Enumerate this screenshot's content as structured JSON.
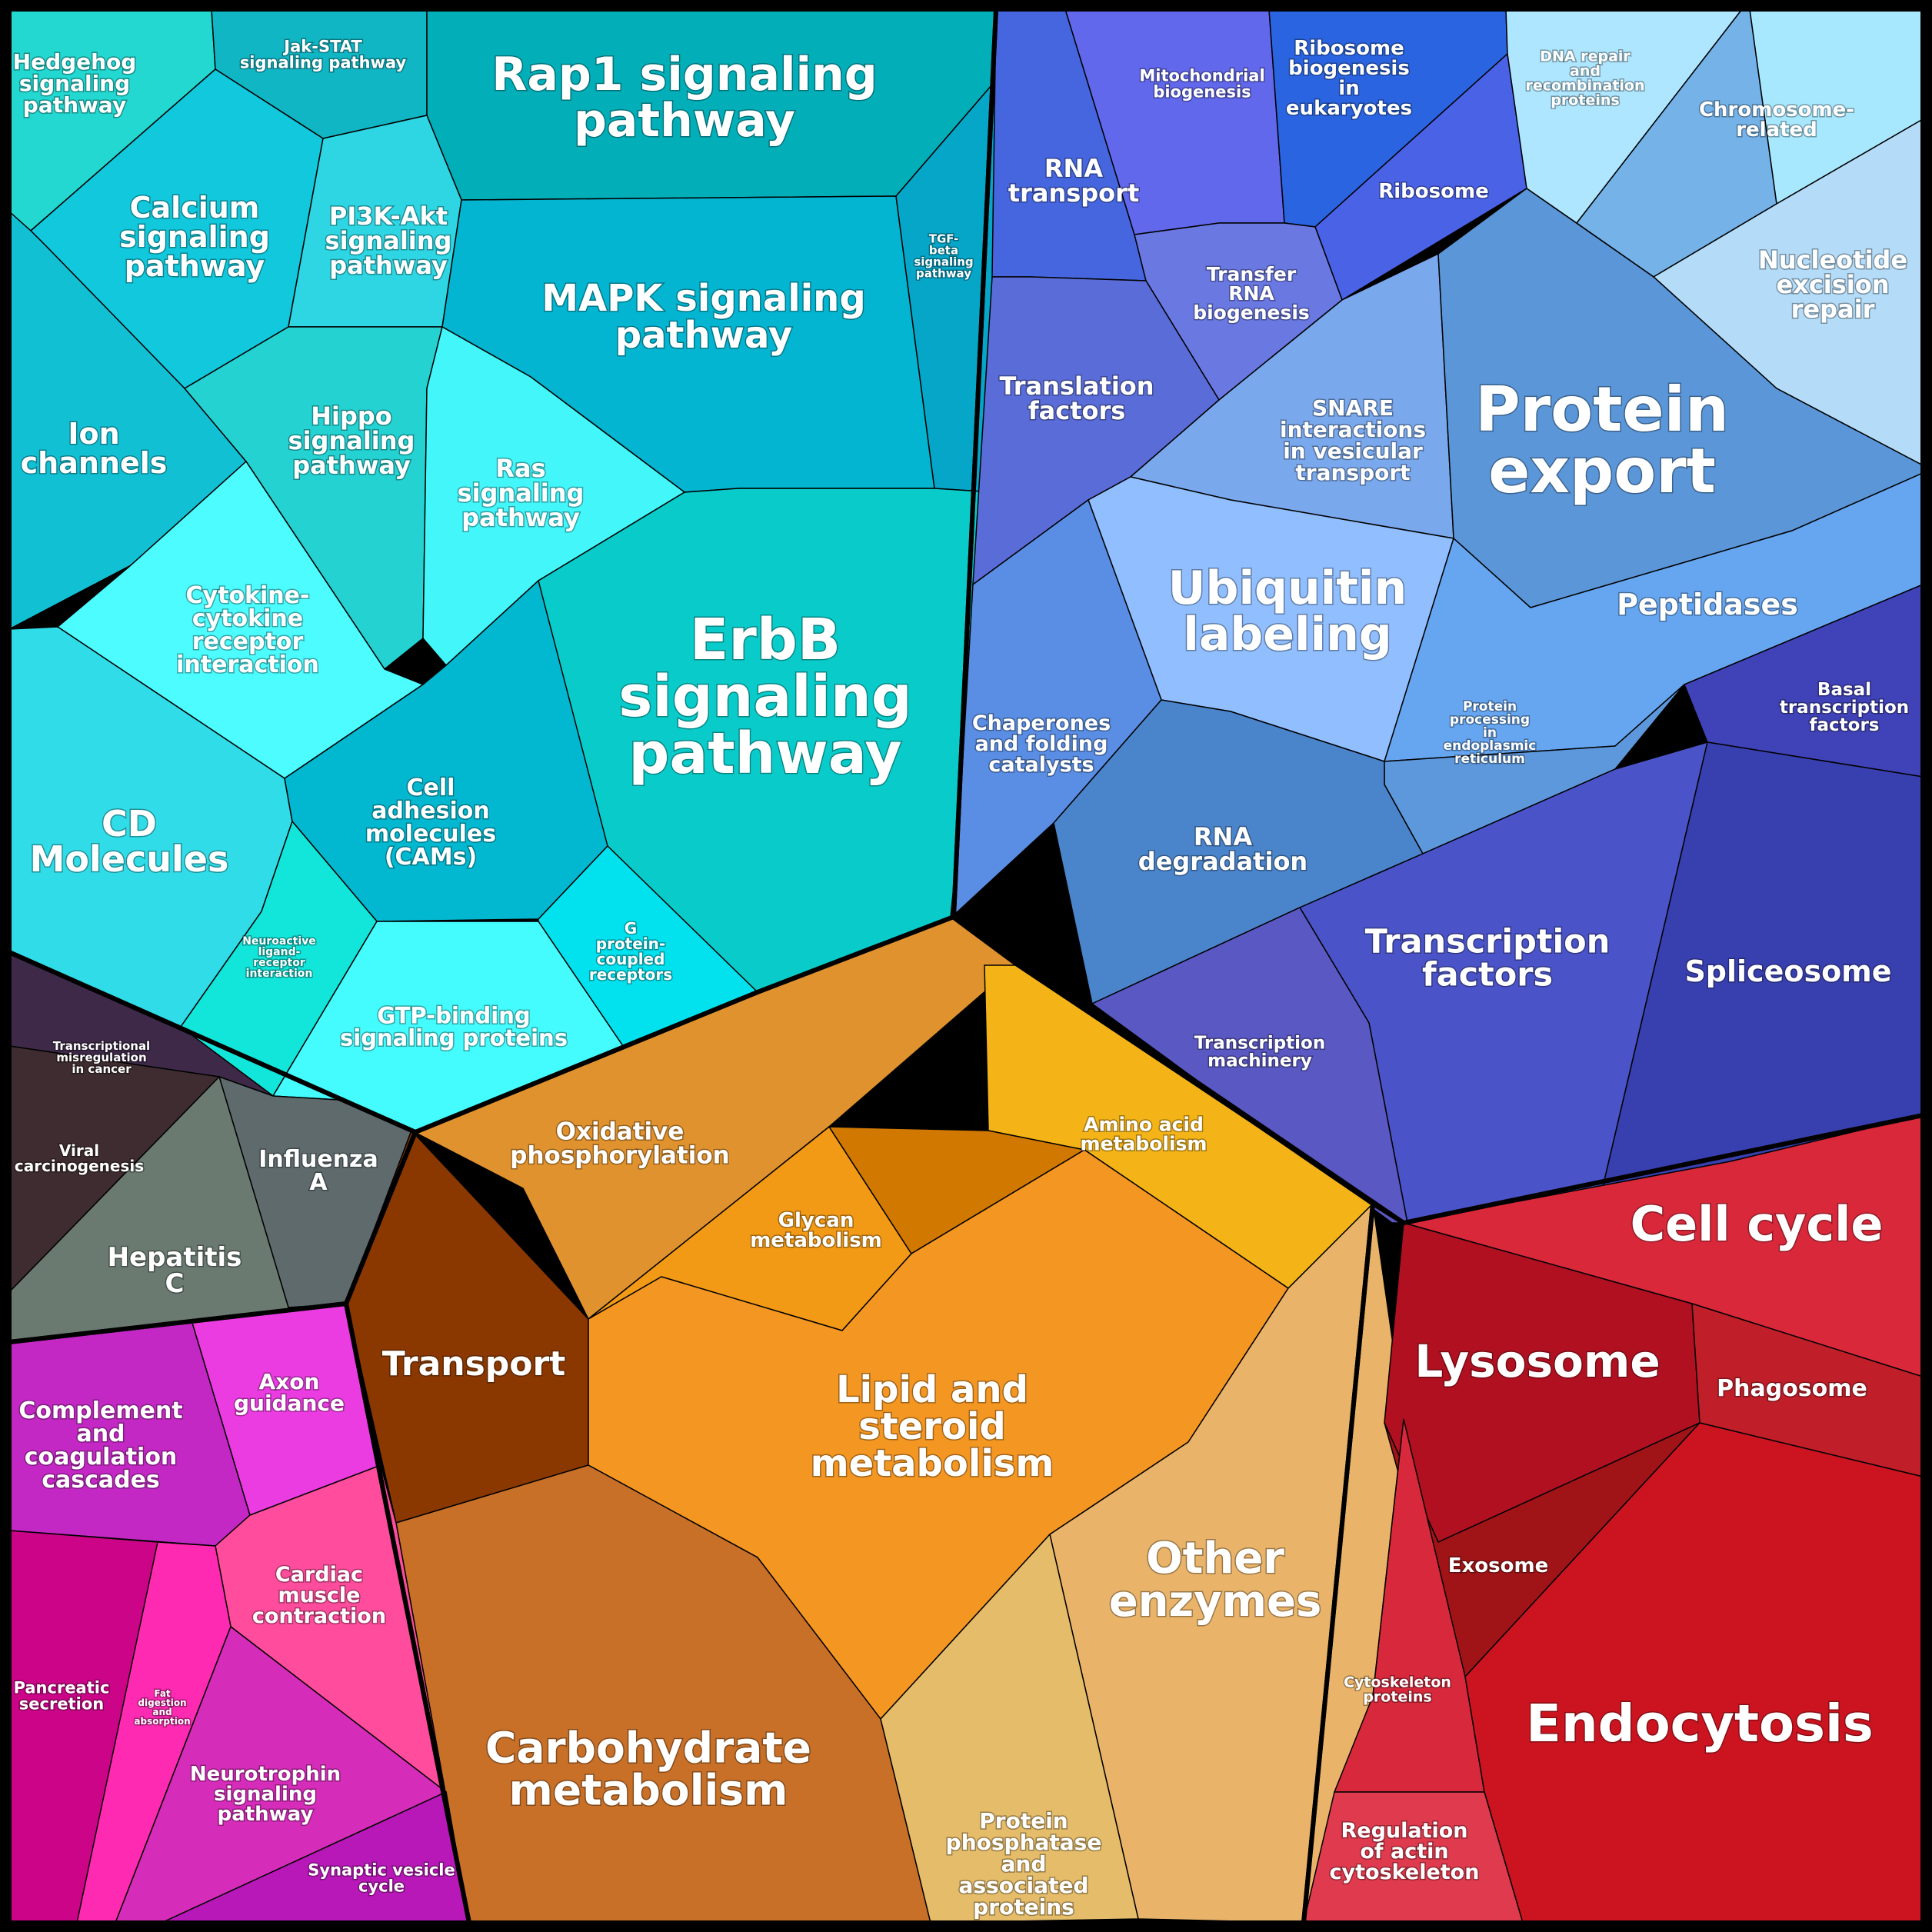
{
  "groups": [
    {
      "key": "signaling",
      "color": "#12b9c8"
    },
    {
      "key": "genetic",
      "color": "#5a6fe6"
    },
    {
      "key": "metabolism",
      "color": "#e08a2a"
    },
    {
      "key": "cellular",
      "color": "#c8202a"
    },
    {
      "key": "disease",
      "color": "#5a3848"
    },
    {
      "key": "organismal",
      "color": "#d62cb8"
    }
  ],
  "labels": {
    "rap1": "Rap1 signaling\npathway",
    "hedgehog": "Hedgehog\nsignaling\npathway",
    "jakstat": "Jak-STAT\nsignaling pathway",
    "calcium": "Calcium\nsignaling\npathway",
    "pi3k": "PI3K-Akt\nsignaling\npathway",
    "mapk": "MAPK signaling\npathway",
    "tgfb": "TGF-\nbeta\nsignaling\npathway",
    "ion": "Ion\nchannels",
    "hippo": "Hippo\nsignaling\npathway",
    "ras": "Ras\nsignaling\npathway",
    "erbb": "ErbB\nsignaling\npathway",
    "cytokine": "Cytokine-\ncytokine\nreceptor\ninteraction",
    "cd": "CD\nMolecules",
    "cam": "Cell\nadhesion\nmolecules\n(CAMs)",
    "neuroactive": "Neuroactive\nligand-\nreceptor\ninteraction",
    "gpcr": "G\nprotein-\ncoupled\nreceptors",
    "gtp": "GTP-binding\nsignaling proteins",
    "rnatransport": "RNA\ntransport",
    "mito": "Mitochondrial\nbiogenesis",
    "ribobio": "Ribosome\nbiogenesis\nin\neukaryotes",
    "ribosome": "Ribosome",
    "trna": "Transfer\nRNA\nbiogenesis",
    "transl": "Translation\nfactors",
    "dnarepair": "DNA repair\nand\nrecombination\nproteins",
    "chrom": "Chromosome-\nrelated",
    "ner": "Nucleotide\nexcision\nrepair",
    "snare": "SNARE\ninteractions\nin vesicular\ntransport",
    "protexp": "Protein\nexport",
    "ubiq": "Ubiquitin\nlabeling",
    "pept": "Peptidases",
    "chaperones": "Chaperones\nand folding\ncatalysts",
    "protproc": "Protein\nprocessing\nin\nendoplasmic\nreticulum",
    "basal": "Basal\ntranscription\nfactors",
    "rnadeg": "RNA\ndegradation",
    "tf": "Transcription\nfactors",
    "splice": "Spliceosome",
    "tmach": "Transcription\nmachinery",
    "tmis": "Transcriptional\nmisregulation\nin cancer",
    "viral": "Viral\ncarcinogenesis",
    "influenza": "Influenza\nA",
    "hepc": "Hepatitis\nC",
    "oxphos": "Oxidative\nphosphorylation",
    "amino": "Amino acid\nmetabolism",
    "glycan": "Glycan\nmetabolism",
    "transport": "Transport",
    "lipid": "Lipid and\nsteroid\nmetabolism",
    "other": "Other\nenzymes",
    "carb": "Carbohydrate\nmetabolism",
    "phosph": "Protein\nphosphatase\nand\nassociated\nproteins",
    "cellcycle": "Cell cycle",
    "lysosome": "Lysosome",
    "phago": "Phagosome",
    "exosome": "Exosome",
    "cytosk": "Cytoskeleton\nproteins",
    "endo": "Endocytosis",
    "regactin": "Regulation\nof actin\ncytoskeleton",
    "complement": "Complement\nand\ncoagulation\ncascades",
    "axon": "Axon\nguidance",
    "cardiac": "Cardiac\nmuscle\ncontraction",
    "pancreatic": "Pancreatic\nsecretion",
    "fat": "Fat\ndigestion\nand\nabsorption",
    "neurotrophin": "Neurotrophin\nsignaling\npathway",
    "synaptic": "Synaptic vesicle\ncycle"
  }
}
